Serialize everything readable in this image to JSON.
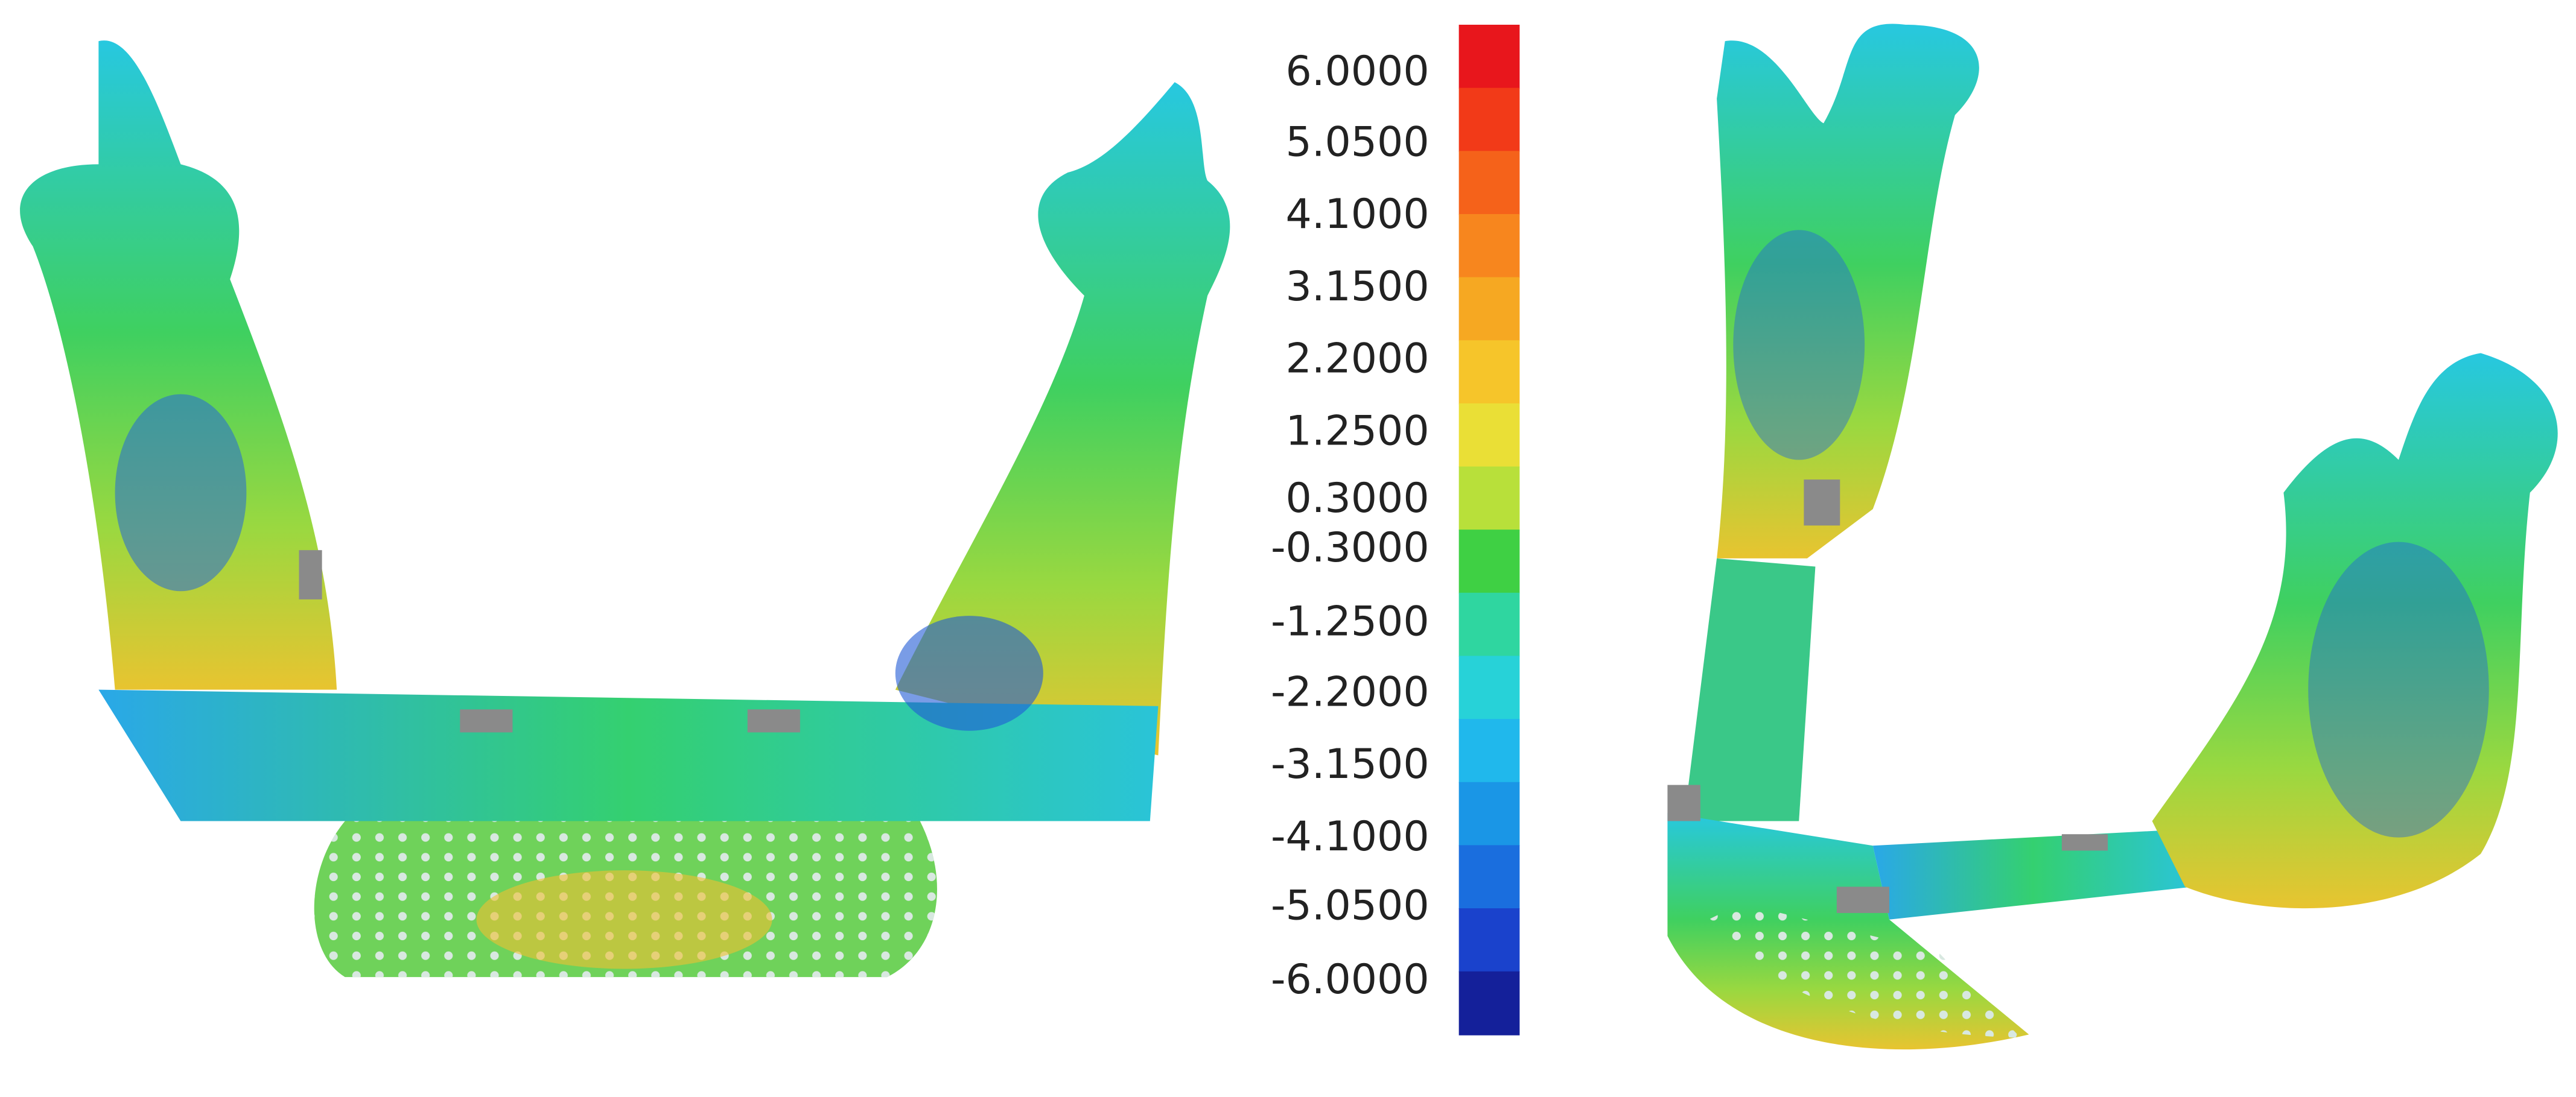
{
  "legend": {
    "labels": [
      "6.0000",
      "5.0500",
      "4.1000",
      "3.1500",
      "2.2000",
      "1.2500",
      "0.3000",
      "-0.3000",
      "-1.2500",
      "-2.2000",
      "-3.1500",
      "-4.1000",
      "-5.0500",
      "-6.0000"
    ],
    "colors": [
      "#e8161c",
      "#f23a18",
      "#f5621a",
      "#f7861e",
      "#f6a822",
      "#f6c52a",
      "#eadf36",
      "#b8e03a",
      "#3fd044",
      "#2fd6a0",
      "#27d2d8",
      "#20b8ec",
      "#1a96e6",
      "#1a6ede",
      "#1a42cc",
      "#14209a"
    ]
  }
}
